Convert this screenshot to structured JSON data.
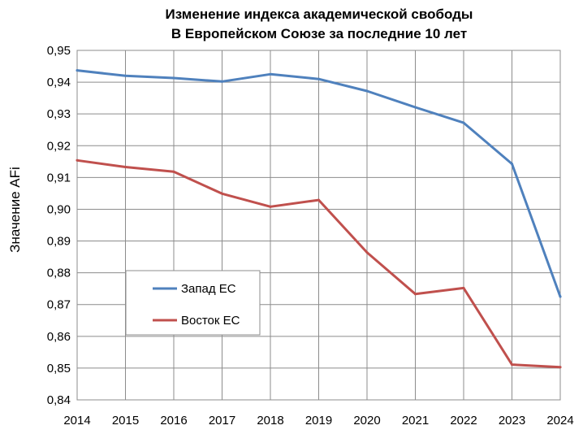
{
  "chart_data": {
    "type": "line",
    "title_lines": [
      "Изменение индекса академической свободы",
      "В Европейском Союзе за последние 10 лет"
    ],
    "xlabel": "",
    "ylabel": "Значение AFi",
    "x": [
      "2014",
      "2015",
      "2016",
      "2017",
      "2018",
      "2019",
      "2020",
      "2021",
      "2022",
      "2023",
      "2024"
    ],
    "y_ticks": [
      "0,84",
      "0,85",
      "0,86",
      "0,87",
      "0,88",
      "0,89",
      "0,90",
      "0,91",
      "0,92",
      "0,93",
      "0,94",
      "0,95"
    ],
    "ylim": [
      0.84,
      0.95
    ],
    "grid": true,
    "legend_position": "lower-left",
    "series": [
      {
        "name": "Запад ЕС",
        "color": "#4F81BD",
        "values": [
          0.9437,
          0.942,
          0.9413,
          0.9402,
          0.9425,
          0.941,
          0.9372,
          0.9321,
          0.9272,
          0.9143,
          0.8725
        ]
      },
      {
        "name": "Восток ЕС",
        "color": "#C0504D",
        "values": [
          0.9154,
          0.9133,
          0.9118,
          0.9049,
          0.9008,
          0.9029,
          0.8864,
          0.8733,
          0.8752,
          0.8511,
          0.8503
        ]
      }
    ]
  }
}
